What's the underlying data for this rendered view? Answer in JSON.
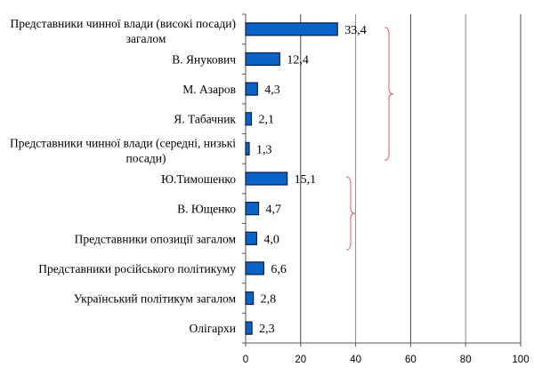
{
  "chart_data": {
    "type": "bar",
    "orientation": "horizontal",
    "categories": [
      [
        "Представники чинної влади (високі посади)",
        "загалом"
      ],
      [
        "В. Янукович"
      ],
      [
        "М. Азаров"
      ],
      [
        "Я. Табачник"
      ],
      [
        "Представники чинної влади (середні, низькі",
        "посади)"
      ],
      [
        "Ю.Тимошенко"
      ],
      [
        "В. Ющенко"
      ],
      [
        "Представники опозиції загалом"
      ],
      [
        "Представники російського політикуму"
      ],
      [
        "Український політикум загалом"
      ],
      [
        "Олігархи"
      ]
    ],
    "values": [
      33.4,
      12.4,
      4.3,
      2.1,
      1.3,
      15.1,
      4.7,
      4.0,
      6.6,
      2.8,
      2.3
    ],
    "value_labels": [
      "33,4",
      "12,4",
      "4,3",
      "2,1",
      "1,3",
      "15,1",
      "4,7",
      "4,0",
      "6,6",
      "2,8",
      "2,3"
    ],
    "x_ticks": [
      "0",
      "20",
      "40",
      "60",
      "80",
      "100"
    ],
    "xlim": [
      0,
      100
    ],
    "grid": "vertical",
    "bar_color": "#0a64c8",
    "bar_border_color": "#0a1e3c",
    "brace_color": "#e06060",
    "braces": [
      {
        "from_category": 0,
        "to_category": 4
      },
      {
        "from_category": 5,
        "to_category": 7
      }
    ],
    "title": "",
    "xlabel": "",
    "ylabel": ""
  }
}
